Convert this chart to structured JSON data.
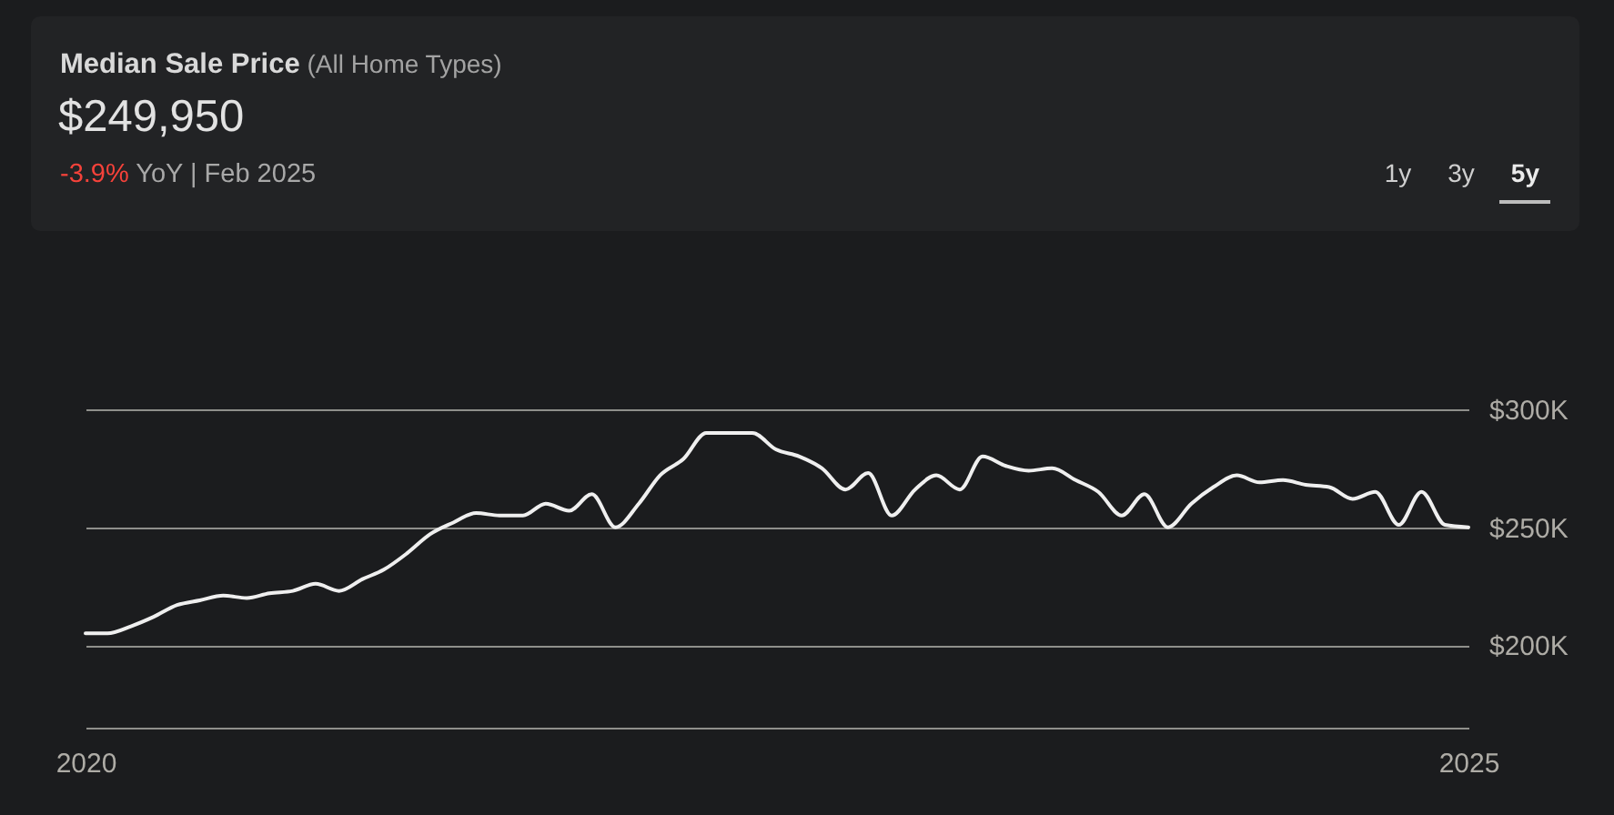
{
  "chart_data": {
    "type": "line",
    "title": "Median Sale Price",
    "subtitle": "(All Home Types)",
    "annotations": [
      "$249,950",
      "-3.9%",
      "YoY | Feb 2025",
      "1y",
      "3y",
      "5y"
    ],
    "x": [
      "2020-02",
      "2020-03",
      "2020-04",
      "2020-05",
      "2020-06",
      "2020-07",
      "2020-08",
      "2020-09",
      "2020-10",
      "2020-11",
      "2020-12",
      "2021-01",
      "2021-02",
      "2021-03",
      "2021-04",
      "2021-05",
      "2021-06",
      "2021-07",
      "2021-08",
      "2021-09",
      "2021-10",
      "2021-11",
      "2021-12",
      "2022-01",
      "2022-02",
      "2022-03",
      "2022-04",
      "2022-05",
      "2022-06",
      "2022-07",
      "2022-08",
      "2022-09",
      "2022-10",
      "2022-11",
      "2022-12",
      "2023-01",
      "2023-02",
      "2023-03",
      "2023-04",
      "2023-05",
      "2023-06",
      "2023-07",
      "2023-08",
      "2023-09",
      "2023-10",
      "2023-11",
      "2023-12",
      "2024-01",
      "2024-02",
      "2024-03",
      "2024-04",
      "2024-05",
      "2024-06",
      "2024-07",
      "2024-08",
      "2024-09",
      "2024-10",
      "2024-11",
      "2024-12",
      "2025-01",
      "2025-02"
    ],
    "series": [
      {
        "color": "#efefef",
        "values": [
          205000,
          205000,
          208000,
          212000,
          217000,
          219000,
          221000,
          220000,
          222000,
          223000,
          226000,
          223000,
          228000,
          232000,
          239000,
          247000,
          252000,
          256000,
          255000,
          255000,
          260000,
          257000,
          264000,
          250000,
          260000,
          272000,
          279000,
          290000,
          290000,
          290000,
          283000,
          280000,
          275000,
          266000,
          273000,
          255000,
          266000,
          272000,
          266000,
          280000,
          276000,
          274000,
          275000,
          270000,
          265000,
          255000,
          264000,
          250000,
          260000,
          267000,
          272000,
          269000,
          270000,
          268000,
          267000,
          262000,
          265000,
          251000,
          265000,
          251000,
          250000
        ]
      }
    ],
    "xlim": [
      "2020-02",
      "2025-02"
    ],
    "xticks": [
      {
        "value": "2020-02",
        "label": "2020"
      },
      {
        "value": "2025-02",
        "label": "2025"
      }
    ],
    "ylim": [
      165000,
      300000
    ],
    "yticks": [
      {
        "value": 200000,
        "label": "$200K"
      },
      {
        "value": 250000,
        "label": "$250K"
      },
      {
        "value": 300000,
        "label": "$300K"
      }
    ],
    "grid": "y"
  }
}
